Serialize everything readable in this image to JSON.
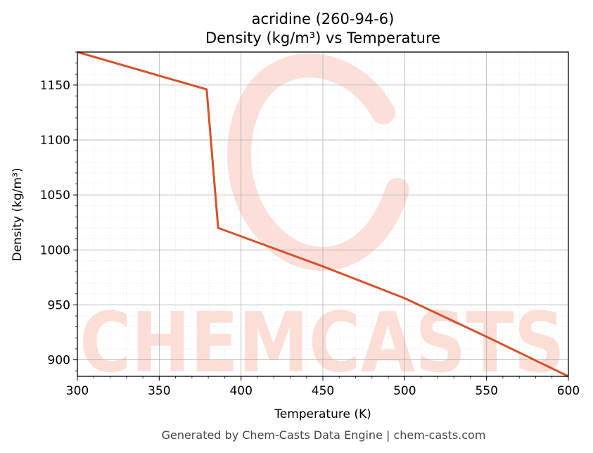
{
  "chart_data": {
    "type": "line",
    "title": "acridine (260-94-6)",
    "subtitle": "Density (kg/m³) vs Temperature",
    "xlabel": "Temperature (K)",
    "ylabel": "Density (kg/m³)",
    "xlim": [
      300,
      600
    ],
    "ylim": [
      885,
      1180
    ],
    "xticks": [
      300,
      350,
      400,
      450,
      500,
      550,
      600
    ],
    "yticks": [
      900,
      950,
      1000,
      1050,
      1100,
      1150
    ],
    "grid": true,
    "line_color": "#d4522a",
    "series": [
      {
        "x": [
          300,
          379,
          386,
          450,
          500,
          550,
          600
        ],
        "y": [
          1180,
          1146,
          1020,
          985,
          956,
          921,
          885
        ]
      }
    ],
    "footer": "Generated by Chem-Casts Data Engine | chem-casts.com",
    "watermark": "CHEMCASTS"
  }
}
